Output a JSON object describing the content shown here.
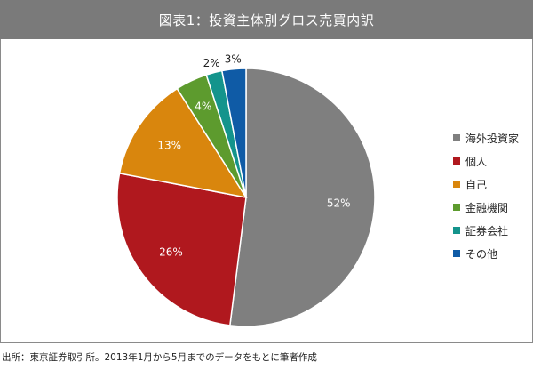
{
  "title": "図表1：投資主体別グロス売買内訳",
  "source": "出所：東京証券取引所。2013年1月から5月までのデータをもとに筆者作成",
  "chart_data": {
    "type": "pie",
    "categories": [
      "海外投資家",
      "個人",
      "自己",
      "金融機関",
      "証券会社",
      "その他"
    ],
    "values": [
      52,
      26,
      13,
      4,
      2,
      3
    ],
    "labels": [
      "52%",
      "26%",
      "13%",
      "4%",
      "2%",
      "3%"
    ],
    "colors": [
      "#7f7f7f",
      "#b0181e",
      "#d9860d",
      "#5d9b2e",
      "#14948c",
      "#0f5ba6"
    ],
    "label_colors": [
      "#ffffff",
      "#ffffff",
      "#ffffff",
      "#ffffff",
      "#222222",
      "#222222"
    ],
    "legend": "right"
  }
}
